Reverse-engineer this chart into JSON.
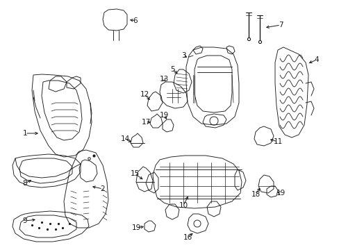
{
  "background_color": "#ffffff",
  "fig_width": 4.89,
  "fig_height": 3.6,
  "dpi": 100,
  "line_color": "#1a1a1a",
  "lw": 0.65
}
